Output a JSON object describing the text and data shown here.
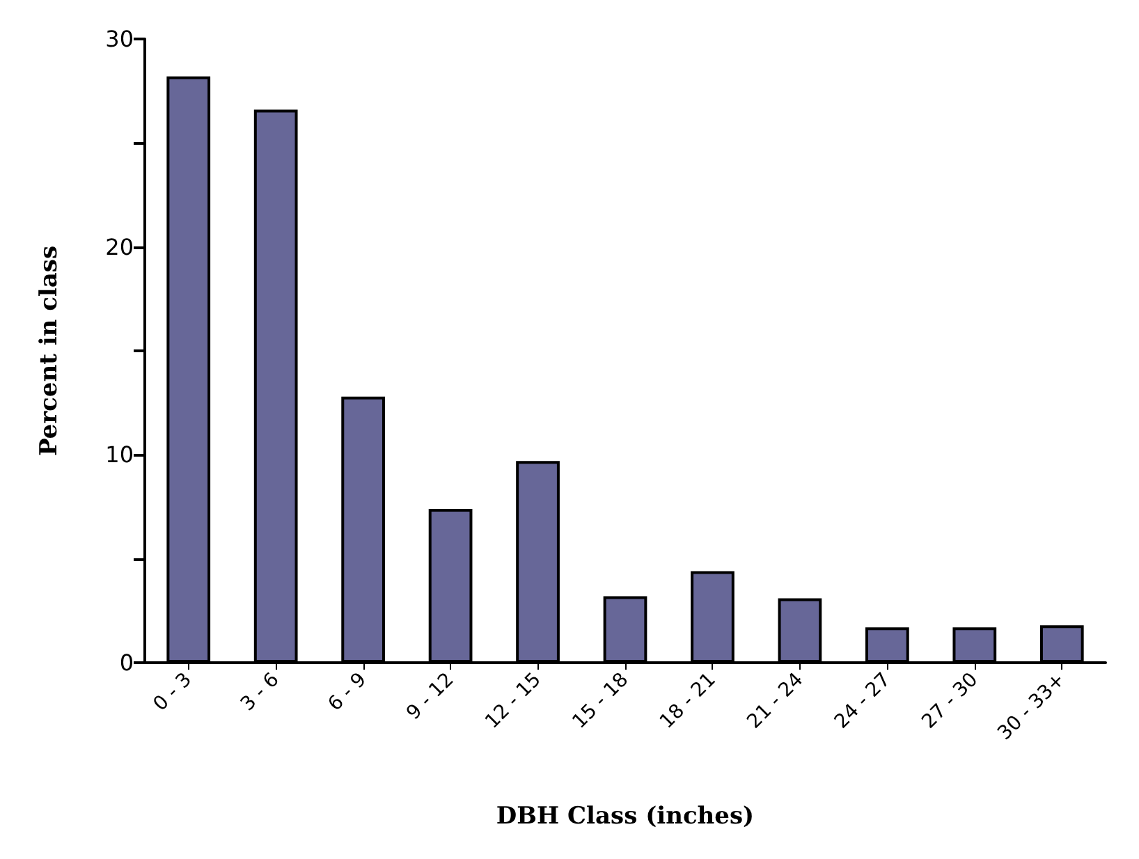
{
  "chart_data": {
    "type": "bar",
    "xlabel": "DBH Class (inches)",
    "ylabel": "Percent in class",
    "categories": [
      "0 - 3",
      "3 - 6",
      "6 - 9",
      "9 - 12",
      "12 - 15",
      "15 - 18",
      "18 - 21",
      "21 - 24",
      "24 - 27",
      "27 - 30",
      "30 - 33+"
    ],
    "values": [
      28.2,
      26.6,
      12.8,
      7.4,
      9.7,
      3.2,
      4.4,
      3.1,
      1.7,
      1.7,
      1.8
    ],
    "color": "#676798",
    "ylim": [
      0,
      30
    ],
    "yticks": [
      0,
      {
        "value": 5,
        "label": null
      },
      10,
      {
        "value": 15,
        "label": null
      },
      20,
      {
        "value": 25,
        "label": null
      },
      30
    ],
    "grid": false
  }
}
